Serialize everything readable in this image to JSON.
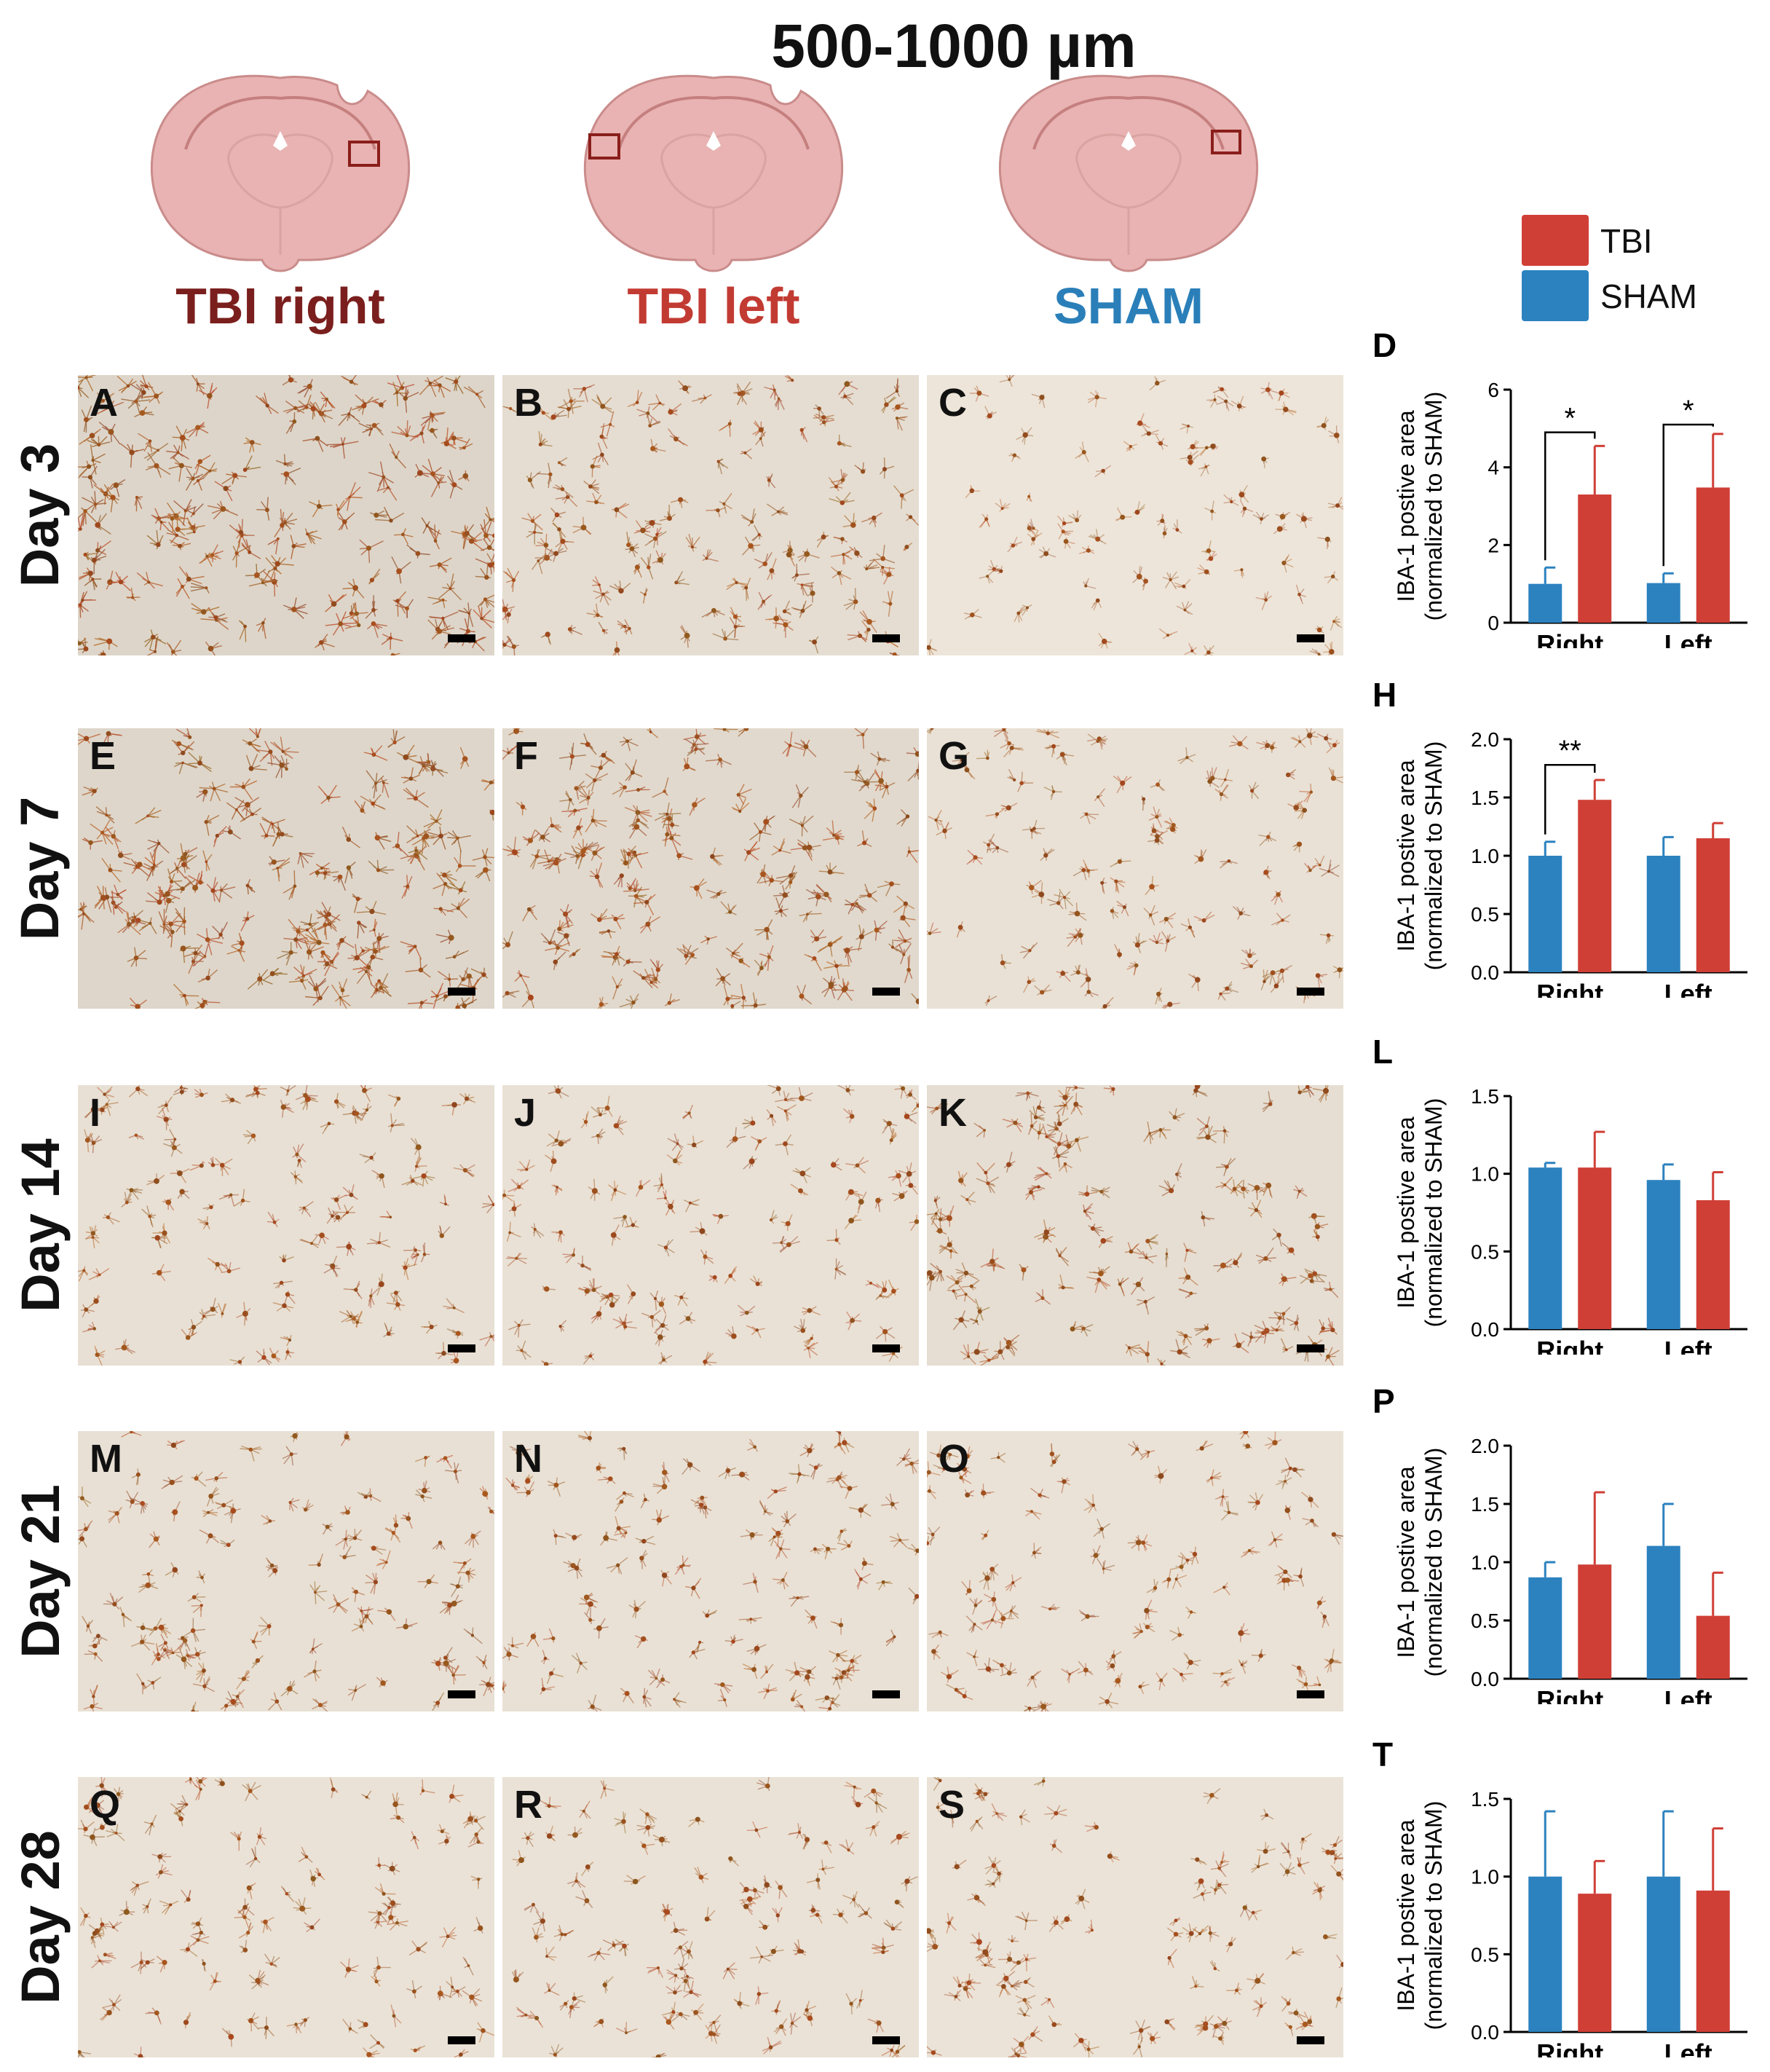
{
  "figure": {
    "title": "500-1000 µm",
    "groups": [
      {
        "label": "TBI right",
        "color": "#7a1f1d"
      },
      {
        "label": "TBI left",
        "color": "#c23b33"
      },
      {
        "label": "SHAM",
        "color": "#2a7fb9"
      }
    ],
    "legend": [
      {
        "label": "TBI",
        "color": "#cf3f36"
      },
      {
        "label": "SHAM",
        "color": "#2c82bf"
      }
    ],
    "days": [
      "Day 3",
      "Day 7",
      "Day 14",
      "Day 21",
      "Day 28"
    ],
    "panel_letters": [
      [
        "A",
        "B",
        "C"
      ],
      [
        "E",
        "F",
        "G"
      ],
      [
        "I",
        "J",
        "K"
      ],
      [
        "M",
        "N",
        "O"
      ],
      [
        "Q",
        "R",
        "S"
      ]
    ],
    "stain_intensity": [
      [
        0.95,
        0.6,
        0.22
      ],
      [
        0.9,
        0.75,
        0.4
      ],
      [
        0.45,
        0.4,
        0.55
      ],
      [
        0.45,
        0.42,
        0.35
      ],
      [
        0.38,
        0.36,
        0.34
      ]
    ]
  },
  "chart_data": [
    {
      "panel": "D",
      "type": "bar",
      "ylabel": "IBA-1 postive area",
      "ylabel2": "(normalized to SHAM)",
      "categories": [
        "Right",
        "Left"
      ],
      "ylim": [
        0,
        6
      ],
      "yticks": [
        "0",
        "2",
        "4",
        "6"
      ],
      "ytick_values": [
        0,
        2,
        4,
        6
      ],
      "series": [
        {
          "name": "SHAM",
          "color": "#2c82bf",
          "values": [
            1.0,
            1.02
          ],
          "errors": [
            0.42,
            0.25
          ]
        },
        {
          "name": "TBI",
          "color": "#cf3f36",
          "values": [
            3.3,
            3.48
          ],
          "errors": [
            1.25,
            1.38
          ]
        }
      ],
      "significance": [
        {
          "category": 0,
          "label": "*",
          "bracket_y": 4.9
        },
        {
          "category": 1,
          "label": "*",
          "bracket_y": 5.1
        }
      ]
    },
    {
      "panel": "H",
      "type": "bar",
      "ylabel": "IBA-1 postive area",
      "ylabel2": "(normalized to SHAM)",
      "categories": [
        "Right",
        "Left"
      ],
      "ylim": [
        0,
        2.0
      ],
      "yticks": [
        "0.0",
        "0.5",
        "1.0",
        "1.5",
        "2.0"
      ],
      "ytick_values": [
        0,
        0.5,
        1.0,
        1.5,
        2.0
      ],
      "series": [
        {
          "name": "SHAM",
          "color": "#2c82bf",
          "values": [
            1.0,
            1.0
          ],
          "errors": [
            0.12,
            0.16
          ]
        },
        {
          "name": "TBI",
          "color": "#cf3f36",
          "values": [
            1.48,
            1.15
          ],
          "errors": [
            0.17,
            0.13
          ]
        }
      ],
      "significance": [
        {
          "category": 0,
          "label": "**",
          "bracket_y": 1.78
        }
      ]
    },
    {
      "panel": "L",
      "type": "bar",
      "ylabel": "IBA-1 postive area",
      "ylabel2": "(normalized to SHAM)",
      "categories": [
        "Right",
        "Left"
      ],
      "ylim": [
        0,
        1.5
      ],
      "yticks": [
        "0.0",
        "0.5",
        "1.0",
        "1.5"
      ],
      "ytick_values": [
        0,
        0.5,
        1.0,
        1.5
      ],
      "series": [
        {
          "name": "SHAM",
          "color": "#2c82bf",
          "values": [
            1.04,
            0.96
          ],
          "errors": [
            0.03,
            0.1
          ]
        },
        {
          "name": "TBI",
          "color": "#cf3f36",
          "values": [
            1.04,
            0.83
          ],
          "errors": [
            0.23,
            0.18
          ]
        }
      ],
      "significance": []
    },
    {
      "panel": "P",
      "type": "bar",
      "ylabel": "IBA-1 postive area",
      "ylabel2": "(normalized to SHAM)",
      "categories": [
        "Right",
        "Left"
      ],
      "ylim": [
        0,
        2.0
      ],
      "yticks": [
        "0.0",
        "0.5",
        "1.0",
        "1.5",
        "2.0"
      ],
      "ytick_values": [
        0,
        0.5,
        1.0,
        1.5,
        2.0
      ],
      "series": [
        {
          "name": "SHAM",
          "color": "#2c82bf",
          "values": [
            0.87,
            1.14
          ],
          "errors": [
            0.13,
            0.36
          ]
        },
        {
          "name": "TBI",
          "color": "#cf3f36",
          "values": [
            0.98,
            0.54
          ],
          "errors": [
            0.62,
            0.37
          ]
        }
      ],
      "significance": []
    },
    {
      "panel": "T",
      "type": "bar",
      "ylabel": "IBA-1 postive area",
      "ylabel2": "(normalized to SHAM)",
      "categories": [
        "Right",
        "Left"
      ],
      "ylim": [
        0,
        1.5
      ],
      "yticks": [
        "0.0",
        "0.5",
        "1.0",
        "1.5"
      ],
      "ytick_values": [
        0,
        0.5,
        1.0,
        1.5
      ],
      "series": [
        {
          "name": "SHAM",
          "color": "#2c82bf",
          "values": [
            1.0,
            1.0
          ],
          "errors": [
            0.42,
            0.42
          ]
        },
        {
          "name": "TBI",
          "color": "#cf3f36",
          "values": [
            0.89,
            0.91
          ],
          "errors": [
            0.21,
            0.4
          ]
        }
      ],
      "significance": []
    }
  ]
}
